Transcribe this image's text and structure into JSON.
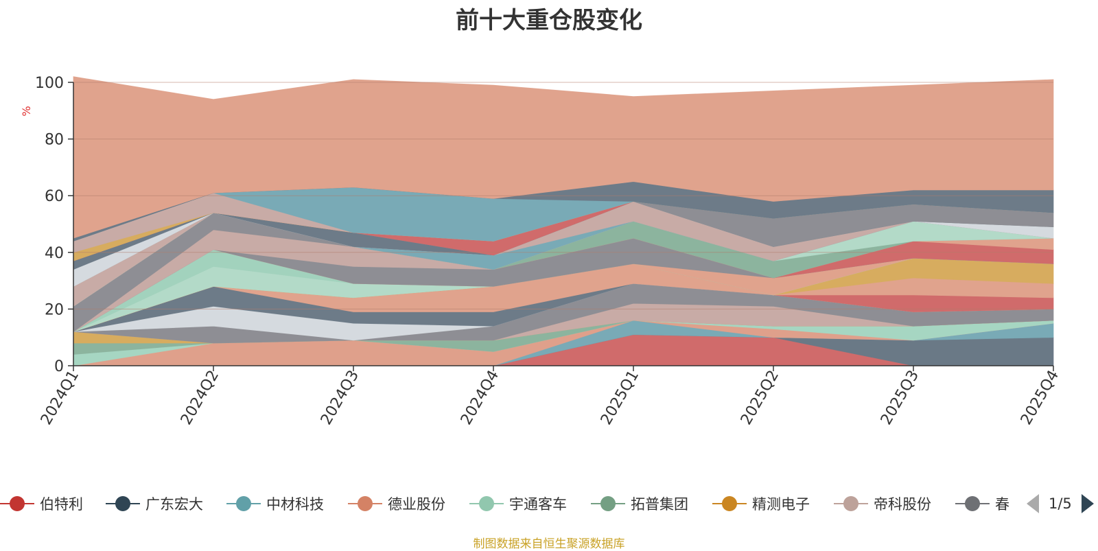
{
  "title": "前十大重仓股变化",
  "source_note": "制图数据来自恒生聚源数据库",
  "pager": {
    "text": "1/5"
  },
  "chart_data": {
    "type": "area",
    "stacked": true,
    "title": "前十大重仓股变化",
    "ylabel": "%",
    "ylim": [
      0,
      100
    ],
    "yticks": [
      0,
      20,
      40,
      60,
      80,
      100
    ],
    "grid": true,
    "legend_position": "bottom",
    "x": [
      "2024Q1",
      "2024Q2",
      "2024Q3",
      "2024Q4",
      "2025Q1",
      "2025Q2",
      "2025Q3",
      "2025Q4"
    ],
    "series": [
      {
        "name": "伯特利",
        "color": "#d06b6b",
        "values": [
          0,
          0,
          0,
          0,
          11,
          10,
          0,
          0
        ]
      },
      {
        "name": "广东宏大",
        "color": "#6a7986",
        "values": [
          0,
          0,
          0,
          0,
          0,
          0,
          9,
          10
        ]
      },
      {
        "name": "中材科技",
        "color": "#79aab6",
        "values": [
          0,
          0,
          0,
          0,
          5,
          0,
          0,
          5
        ]
      },
      {
        "name": "德业股份",
        "color": "#dfa08b",
        "values": [
          0,
          8,
          9,
          5,
          0,
          3,
          0,
          0
        ]
      },
      {
        "name": "宇通客车",
        "color": "#a6d6c2",
        "values": [
          4,
          0,
          0,
          0,
          0,
          1,
          5,
          1
        ]
      },
      {
        "name": "拓普集团",
        "color": "#8cb49e",
        "values": [
          4,
          0,
          0,
          4,
          0,
          0,
          0,
          0
        ]
      },
      {
        "name": "精测电子",
        "color": "#d7ac5f",
        "values": [
          4,
          0,
          0,
          0,
          0,
          0,
          0,
          0
        ]
      },
      {
        "name": "帝科股份",
        "color": "#c8aba6",
        "values": [
          0,
          0,
          0,
          0,
          6,
          7,
          0,
          0
        ]
      },
      {
        "name": "春",
        "color": "#8e8e94",
        "values": [
          0,
          6,
          0,
          5,
          7,
          4,
          5,
          4
        ]
      },
      {
        "name": "",
        "color": "#d5dadf",
        "values": [
          0,
          7,
          6,
          0,
          0,
          0,
          0,
          0
        ]
      },
      {
        "name": "",
        "color": "#6d7b88",
        "values": [
          0,
          7,
          4,
          5,
          0,
          0,
          0,
          0
        ]
      },
      {
        "name": "",
        "color": "#e0a38d",
        "values": [
          0,
          0,
          5,
          9,
          7,
          0,
          0,
          0
        ]
      },
      {
        "name": "",
        "color": "#d06b6b",
        "values": [
          0,
          0,
          0,
          0,
          0,
          0,
          6,
          4
        ]
      },
      {
        "name": "",
        "color": "#e0a38d",
        "values": [
          0,
          0,
          0,
          0,
          0,
          0,
          6,
          5
        ]
      },
      {
        "name": "",
        "color": "#d7ac5f",
        "values": [
          0,
          0,
          0,
          0,
          0,
          0,
          7,
          7
        ]
      },
      {
        "name": "",
        "color": "#b3dac8",
        "values": [
          0,
          7,
          5,
          0,
          0,
          0,
          0,
          0
        ]
      },
      {
        "name": "",
        "color": "#a2d2bd",
        "values": [
          0,
          6,
          0,
          0,
          0,
          0,
          0,
          0
        ]
      },
      {
        "name": "",
        "color": "#e0a38d",
        "values": [
          0,
          0,
          0,
          0,
          0,
          6,
          0,
          0
        ]
      },
      {
        "name": "",
        "color": "#8e8e94",
        "values": [
          0,
          0,
          6,
          6,
          9,
          0,
          0,
          0
        ]
      },
      {
        "name": "",
        "color": "#c8aba6",
        "values": [
          0,
          7,
          7,
          0,
          0,
          0,
          0,
          0
        ]
      },
      {
        "name": "",
        "color": "#8e8e94",
        "values": [
          9,
          6,
          0,
          0,
          0,
          0,
          0,
          0
        ]
      },
      {
        "name": "",
        "color": "#d06b6b",
        "values": [
          0,
          0,
          0,
          0,
          0,
          0,
          6,
          5
        ]
      },
      {
        "name": "",
        "color": "#e0a38d",
        "values": [
          0,
          0,
          0,
          0,
          0,
          0,
          0,
          4
        ]
      },
      {
        "name": "",
        "color": "#8cb49e",
        "values": [
          0,
          0,
          0,
          0,
          6,
          6,
          0,
          0
        ]
      },
      {
        "name": "",
        "color": "#b3dac8",
        "values": [
          0,
          0,
          0,
          0,
          0,
          0,
          7,
          0
        ]
      },
      {
        "name": "",
        "color": "#c8aba6",
        "values": [
          7,
          0,
          0,
          0,
          0,
          0,
          0,
          0
        ]
      },
      {
        "name": "",
        "color": "#79aab6",
        "values": [
          0,
          0,
          0,
          5,
          0,
          0,
          0,
          0
        ]
      },
      {
        "name": "",
        "color": "#c8aba6",
        "values": [
          0,
          0,
          0,
          0,
          7,
          5,
          0,
          0
        ]
      },
      {
        "name": "",
        "color": "#d5dadf",
        "values": [
          6,
          0,
          0,
          0,
          0,
          0,
          0,
          4
        ]
      },
      {
        "name": "",
        "color": "#6d7b88",
        "values": [
          3,
          0,
          5,
          0,
          0,
          0,
          0,
          0
        ]
      },
      {
        "name": "",
        "color": "#8e8e94",
        "values": [
          0,
          0,
          0,
          0,
          0,
          10,
          6,
          5
        ]
      },
      {
        "name": "",
        "color": "#d06b6b",
        "values": [
          0,
          0,
          0,
          5,
          0,
          0,
          0,
          0
        ]
      },
      {
        "name": "",
        "color": "#d7ac5f",
        "values": [
          3,
          0,
          0,
          0,
          0,
          0,
          0,
          0
        ]
      },
      {
        "name": "",
        "color": "#c8aba6",
        "values": [
          4,
          7,
          0,
          0,
          0,
          0,
          0,
          0
        ]
      },
      {
        "name": "",
        "color": "#79aab6",
        "values": [
          0,
          0,
          16,
          15,
          0,
          0,
          0,
          0
        ]
      },
      {
        "name": "",
        "color": "#6d7b88",
        "values": [
          0,
          0,
          0,
          0,
          7,
          6,
          5,
          8
        ]
      },
      {
        "name": "",
        "color": "#6d7b88",
        "values": [
          1,
          0,
          0,
          0,
          0,
          0,
          0,
          0
        ]
      },
      {
        "name": "",
        "color": "#e0a38d",
        "values": [
          57,
          33,
          38,
          40,
          30,
          39,
          37,
          39
        ]
      }
    ]
  },
  "legend": [
    {
      "label": "伯特利",
      "color": "#c23531"
    },
    {
      "label": "广东宏大",
      "color": "#2f4554"
    },
    {
      "label": "中材科技",
      "color": "#61a0a8"
    },
    {
      "label": "德业股份",
      "color": "#d48265"
    },
    {
      "label": "宇通客车",
      "color": "#91c7ae"
    },
    {
      "label": "拓普集团",
      "color": "#749f83"
    },
    {
      "label": "精测电子",
      "color": "#ca8622"
    },
    {
      "label": "帝科股份",
      "color": "#bda29a"
    },
    {
      "label": "春",
      "color": "#6e7074"
    }
  ]
}
